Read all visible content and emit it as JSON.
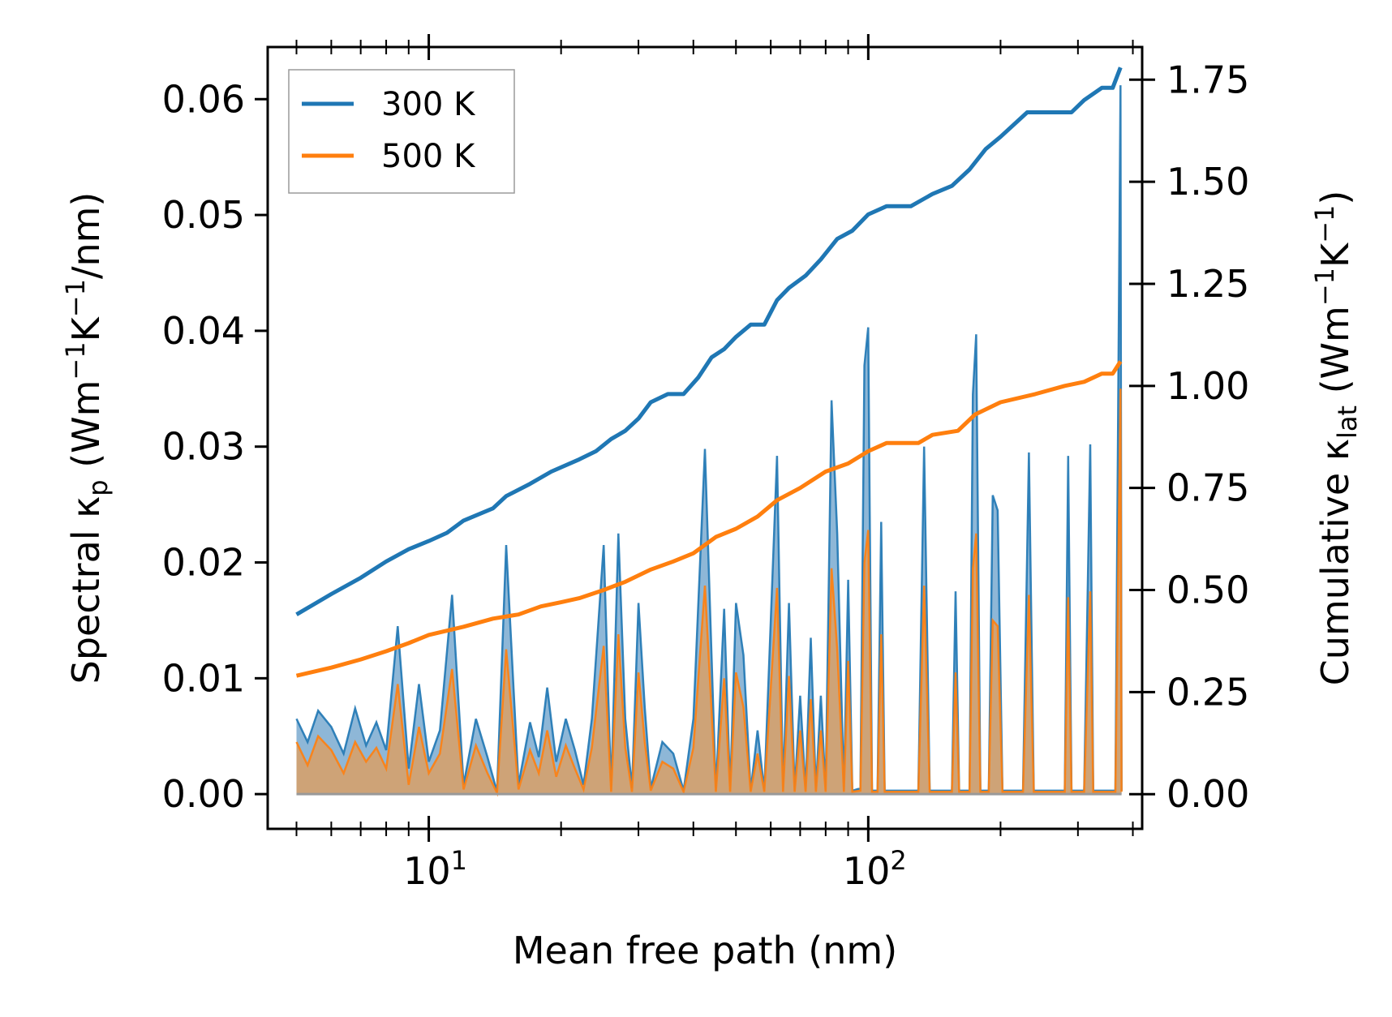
{
  "chart_data": {
    "type": "line",
    "title": "",
    "xlabel": "Mean free path (nm)",
    "xscale": "log",
    "xlim": [
      4.3,
      420
    ],
    "ylabel_left": {
      "pre": "Spectral κ",
      "sub": "p",
      "post": " (Wm",
      "sup1": "−1",
      "mid": "K",
      "sup2": "−1",
      "end": "/nm)"
    },
    "ylabel_right": {
      "pre": "Cumulative κ",
      "sub": "lat",
      "post": " (Wm",
      "sup1": "−1",
      "mid": "K",
      "sup2": "−1",
      "end": ")"
    },
    "ylim_left": [
      -0.003,
      0.0645
    ],
    "ylim_right": [
      -0.085,
      1.83
    ],
    "yticks_left": [
      "0.00",
      "0.01",
      "0.02",
      "0.03",
      "0.04",
      "0.05",
      "0.06"
    ],
    "yticks_left_values": [
      0,
      0.01,
      0.02,
      0.03,
      0.04,
      0.05,
      0.06
    ],
    "yticks_right": [
      "0.00",
      "0.25",
      "0.50",
      "0.75",
      "1.00",
      "1.25",
      "1.50",
      "1.75"
    ],
    "yticks_right_values": [
      0,
      0.25,
      0.5,
      0.75,
      1.0,
      1.25,
      1.5,
      1.75
    ],
    "xticks": [
      {
        "base": "10",
        "exp": "1",
        "value": 10
      },
      {
        "base": "10",
        "exp": "2",
        "value": 100
      }
    ],
    "legend": {
      "location": "top-left",
      "entries": [
        "300 K",
        "500 K"
      ]
    },
    "colors": {
      "300K": "#1f77b4",
      "500K": "#ff7f0e",
      "fill300": "#7aaad0",
      "fill500": "#d9a066"
    },
    "series": [
      {
        "name": "300 K",
        "kind": "cumulative",
        "axis": "right",
        "points": [
          [
            5,
            0.44
          ],
          [
            6,
            0.49
          ],
          [
            7,
            0.53
          ],
          [
            8,
            0.57
          ],
          [
            9,
            0.6
          ],
          [
            10,
            0.62
          ],
          [
            11,
            0.64
          ],
          [
            12,
            0.67
          ],
          [
            14,
            0.7
          ],
          [
            15,
            0.73
          ],
          [
            17,
            0.76
          ],
          [
            19,
            0.79
          ],
          [
            22,
            0.82
          ],
          [
            24,
            0.84
          ],
          [
            26,
            0.87
          ],
          [
            28,
            0.89
          ],
          [
            30,
            0.92
          ],
          [
            32,
            0.96
          ],
          [
            35,
            0.98
          ],
          [
            38,
            0.98
          ],
          [
            41,
            1.02
          ],
          [
            44,
            1.07
          ],
          [
            47,
            1.09
          ],
          [
            50,
            1.12
          ],
          [
            54,
            1.15
          ],
          [
            58,
            1.15
          ],
          [
            62,
            1.21
          ],
          [
            66,
            1.24
          ],
          [
            72,
            1.27
          ],
          [
            78,
            1.31
          ],
          [
            85,
            1.36
          ],
          [
            92,
            1.38
          ],
          [
            100,
            1.42
          ],
          [
            110,
            1.44
          ],
          [
            125,
            1.44
          ],
          [
            140,
            1.47
          ],
          [
            155,
            1.49
          ],
          [
            170,
            1.53
          ],
          [
            185,
            1.58
          ],
          [
            200,
            1.61
          ],
          [
            230,
            1.67
          ],
          [
            260,
            1.67
          ],
          [
            290,
            1.67
          ],
          [
            310,
            1.7
          ],
          [
            340,
            1.73
          ],
          [
            360,
            1.73
          ],
          [
            375,
            1.78
          ]
        ]
      },
      {
        "name": "500 K",
        "kind": "cumulative",
        "axis": "right",
        "points": [
          [
            5,
            0.29
          ],
          [
            6,
            0.31
          ],
          [
            7,
            0.33
          ],
          [
            8,
            0.35
          ],
          [
            9,
            0.37
          ],
          [
            10,
            0.39
          ],
          [
            12,
            0.41
          ],
          [
            14,
            0.43
          ],
          [
            16,
            0.44
          ],
          [
            18,
            0.46
          ],
          [
            20,
            0.47
          ],
          [
            22,
            0.48
          ],
          [
            25,
            0.5
          ],
          [
            28,
            0.52
          ],
          [
            32,
            0.55
          ],
          [
            36,
            0.57
          ],
          [
            40,
            0.59
          ],
          [
            45,
            0.63
          ],
          [
            50,
            0.65
          ],
          [
            56,
            0.68
          ],
          [
            62,
            0.72
          ],
          [
            70,
            0.75
          ],
          [
            80,
            0.79
          ],
          [
            90,
            0.81
          ],
          [
            100,
            0.84
          ],
          [
            110,
            0.86
          ],
          [
            130,
            0.86
          ],
          [
            140,
            0.88
          ],
          [
            160,
            0.89
          ],
          [
            175,
            0.93
          ],
          [
            200,
            0.96
          ],
          [
            240,
            0.98
          ],
          [
            280,
            1.0
          ],
          [
            310,
            1.01
          ],
          [
            340,
            1.03
          ],
          [
            360,
            1.03
          ],
          [
            375,
            1.06
          ]
        ]
      },
      {
        "name": "300 K spectral",
        "kind": "spectral",
        "axis": "left",
        "points": [
          [
            5,
            0.0065
          ],
          [
            5.3,
            0.0045
          ],
          [
            5.6,
            0.0072
          ],
          [
            6,
            0.0058
          ],
          [
            6.4,
            0.0035
          ],
          [
            6.8,
            0.0074
          ],
          [
            7.2,
            0.0042
          ],
          [
            7.6,
            0.0062
          ],
          [
            8,
            0.0038
          ],
          [
            8.5,
            0.0145
          ],
          [
            9,
            0.0022
          ],
          [
            9.5,
            0.0095
          ],
          [
            10,
            0.0028
          ],
          [
            10.6,
            0.0055
          ],
          [
            11.3,
            0.0172
          ],
          [
            12,
            0.0008
          ],
          [
            12.8,
            0.0065
          ],
          [
            13.6,
            0.0032
          ],
          [
            14.3,
            0.0002
          ],
          [
            15,
            0.0215
          ],
          [
            16,
            0.0008
          ],
          [
            17,
            0.0062
          ],
          [
            17.8,
            0.0032
          ],
          [
            18.6,
            0.0092
          ],
          [
            19.5,
            0.0028
          ],
          [
            20.5,
            0.0065
          ],
          [
            21.5,
            0.0038
          ],
          [
            22.5,
            0.0008
          ],
          [
            23.5,
            0.0065
          ],
          [
            25,
            0.0215
          ],
          [
            26,
            0.0003
          ],
          [
            27,
            0.0225
          ],
          [
            28,
            0.0065
          ],
          [
            29,
            0.0005
          ],
          [
            30,
            0.0165
          ],
          [
            31,
            0.0075
          ],
          [
            32,
            0.0005
          ],
          [
            34,
            0.0045
          ],
          [
            36,
            0.0035
          ],
          [
            38,
            0.0003
          ],
          [
            40,
            0.0065
          ],
          [
            42.5,
            0.0298
          ],
          [
            45,
            0.0003
          ],
          [
            47,
            0.016
          ],
          [
            48.5,
            0.0003
          ],
          [
            50,
            0.0165
          ],
          [
            52,
            0.012
          ],
          [
            54,
            0.0003
          ],
          [
            56,
            0.0055
          ],
          [
            58,
            0.0003
          ],
          [
            60,
            0.015
          ],
          [
            62,
            0.0292
          ],
          [
            64,
            0.0003
          ],
          [
            66,
            0.0165
          ],
          [
            68,
            0.0003
          ],
          [
            70,
            0.0085
          ],
          [
            72,
            0.0003
          ],
          [
            74,
            0.0135
          ],
          [
            76,
            0.0003
          ],
          [
            78,
            0.0085
          ],
          [
            80,
            0.0003
          ],
          [
            82.5,
            0.034
          ],
          [
            85,
            0.0225
          ],
          [
            88,
            0.0003
          ],
          [
            90,
            0.0185
          ],
          [
            92,
            0.0003
          ],
          [
            96,
            0.0005
          ],
          [
            98,
            0.037
          ],
          [
            100,
            0.0403
          ],
          [
            102,
            0.0003
          ],
          [
            105,
            0.0003
          ],
          [
            107,
            0.0235
          ],
          [
            109,
            0.0003
          ],
          [
            130,
            0.0003
          ],
          [
            134,
            0.03
          ],
          [
            138,
            0.0003
          ],
          [
            155,
            0.0003
          ],
          [
            158,
            0.0175
          ],
          [
            161,
            0.0003
          ],
          [
            170,
            0.0003
          ],
          [
            173,
            0.0345
          ],
          [
            176,
            0.0397
          ],
          [
            180,
            0.0003
          ],
          [
            188,
            0.0003
          ],
          [
            192,
            0.0258
          ],
          [
            197,
            0.0245
          ],
          [
            202,
            0.0003
          ],
          [
            225,
            0.0003
          ],
          [
            232,
            0.0295
          ],
          [
            238,
            0.0003
          ],
          [
            280,
            0.0003
          ],
          [
            285,
            0.0292
          ],
          [
            290,
            0.0003
          ],
          [
            310,
            0.0003
          ],
          [
            320,
            0.0302
          ],
          [
            325,
            0.0003
          ],
          [
            365,
            0.0003
          ],
          [
            375,
            0.0612
          ],
          [
            377,
            0.0003
          ]
        ]
      },
      {
        "name": "500 K spectral",
        "kind": "spectral",
        "axis": "left",
        "points": [
          [
            5,
            0.0045
          ],
          [
            5.3,
            0.0025
          ],
          [
            5.6,
            0.005
          ],
          [
            6,
            0.0038
          ],
          [
            6.4,
            0.0018
          ],
          [
            6.8,
            0.0045
          ],
          [
            7.2,
            0.0028
          ],
          [
            7.6,
            0.004
          ],
          [
            8,
            0.0022
          ],
          [
            8.5,
            0.0095
          ],
          [
            9,
            0.0008
          ],
          [
            9.5,
            0.0058
          ],
          [
            10,
            0.0018
          ],
          [
            10.6,
            0.0035
          ],
          [
            11.3,
            0.0108
          ],
          [
            12,
            0.0004
          ],
          [
            12.8,
            0.0042
          ],
          [
            13.6,
            0.0018
          ],
          [
            14.3,
            0.0001
          ],
          [
            15,
            0.0125
          ],
          [
            16,
            0.0004
          ],
          [
            17,
            0.0038
          ],
          [
            17.8,
            0.0018
          ],
          [
            18.6,
            0.0055
          ],
          [
            19.5,
            0.0015
          ],
          [
            20.5,
            0.0042
          ],
          [
            21.5,
            0.0022
          ],
          [
            22.5,
            0.0004
          ],
          [
            23.5,
            0.004
          ],
          [
            25,
            0.0128
          ],
          [
            26,
            0.0002
          ],
          [
            27,
            0.0138
          ],
          [
            28,
            0.004
          ],
          [
            29,
            0.0002
          ],
          [
            30,
            0.0105
          ],
          [
            31,
            0.0045
          ],
          [
            32,
            0.0003
          ],
          [
            34,
            0.0028
          ],
          [
            36,
            0.0022
          ],
          [
            38,
            0.0002
          ],
          [
            40,
            0.004
          ],
          [
            42.5,
            0.018
          ],
          [
            45,
            0.0002
          ],
          [
            47,
            0.01
          ],
          [
            48.5,
            0.0002
          ],
          [
            50,
            0.0105
          ],
          [
            52,
            0.0075
          ],
          [
            54,
            0.0002
          ],
          [
            56,
            0.0035
          ],
          [
            58,
            0.0002
          ],
          [
            60,
            0.0092
          ],
          [
            62,
            0.0178
          ],
          [
            64,
            0.0002
          ],
          [
            66,
            0.0102
          ],
          [
            68,
            0.0002
          ],
          [
            70,
            0.0055
          ],
          [
            72,
            0.0002
          ],
          [
            74,
            0.0082
          ],
          [
            76,
            0.0002
          ],
          [
            78,
            0.0055
          ],
          [
            80,
            0.0002
          ],
          [
            82.5,
            0.0195
          ],
          [
            85,
            0.0125
          ],
          [
            88,
            0.0002
          ],
          [
            90,
            0.0115
          ],
          [
            92,
            0.0002
          ],
          [
            96,
            0.0003
          ],
          [
            98,
            0.02
          ],
          [
            100,
            0.0228
          ],
          [
            102,
            0.0002
          ],
          [
            105,
            0.0002
          ],
          [
            107,
            0.0138
          ],
          [
            109,
            0.0002
          ],
          [
            130,
            0.0002
          ],
          [
            134,
            0.018
          ],
          [
            138,
            0.0002
          ],
          [
            155,
            0.0002
          ],
          [
            158,
            0.0105
          ],
          [
            161,
            0.0002
          ],
          [
            170,
            0.0002
          ],
          [
            173,
            0.0195
          ],
          [
            176,
            0.0225
          ],
          [
            180,
            0.0002
          ],
          [
            188,
            0.0002
          ],
          [
            192,
            0.015
          ],
          [
            197,
            0.0145
          ],
          [
            202,
            0.0002
          ],
          [
            225,
            0.0002
          ],
          [
            232,
            0.0172
          ],
          [
            238,
            0.0002
          ],
          [
            280,
            0.0002
          ],
          [
            285,
            0.017
          ],
          [
            290,
            0.0002
          ],
          [
            310,
            0.0002
          ],
          [
            320,
            0.0175
          ],
          [
            325,
            0.0002
          ],
          [
            365,
            0.0002
          ],
          [
            375,
            0.035
          ],
          [
            377,
            0.0002
          ]
        ]
      }
    ]
  }
}
